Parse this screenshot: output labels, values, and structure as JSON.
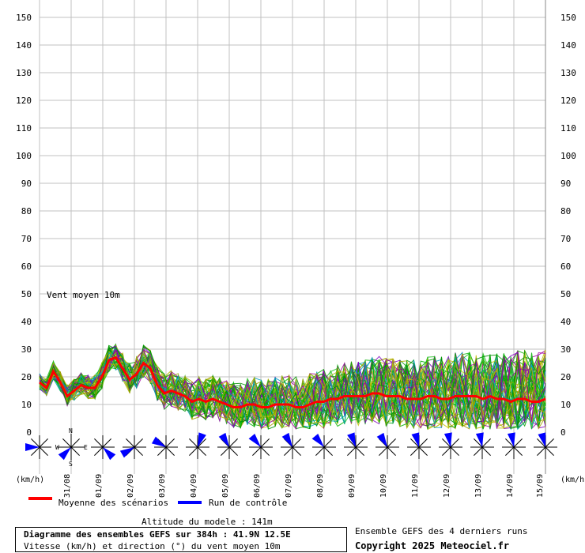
{
  "chart_data": {
    "type": "line",
    "title": "Diagramme des ensembles GEFS sur 384h : 41.9N 12.5E",
    "subtitle": "Vitesse (km/h) et direction (°) du vent moyen 10m",
    "series_label": "Vent moyen 10m",
    "ylim": [
      0,
      150
    ],
    "yticks": [
      0,
      10,
      20,
      30,
      40,
      50,
      60,
      70,
      80,
      90,
      100,
      110,
      120,
      130,
      140,
      150
    ],
    "unit_left": "(km/h)",
    "unit_right": "(km/h)",
    "x_labels": [
      "31/08",
      "01/09",
      "02/09",
      "03/09",
      "04/09",
      "05/09",
      "06/09",
      "07/09",
      "08/09",
      "09/09",
      "10/09",
      "11/09",
      "12/09",
      "13/09",
      "14/09",
      "15/09"
    ],
    "grid": true,
    "series": [
      {
        "name": "Moyenne des scénarios",
        "color": "#ff0000",
        "values": [
          18,
          16,
          22,
          18,
          13,
          15,
          17,
          16,
          16,
          20,
          26,
          27,
          23,
          19,
          21,
          25,
          23,
          17,
          14,
          15,
          14,
          13,
          11,
          12,
          11,
          12,
          11,
          10,
          9,
          9,
          10,
          10,
          9,
          9,
          10,
          10,
          10,
          9,
          9,
          10,
          11,
          11,
          12,
          12,
          13,
          13,
          13,
          13,
          14,
          14,
          13,
          13,
          13,
          12,
          12,
          12,
          13,
          13,
          12,
          12,
          13,
          13,
          13,
          13,
          12,
          13,
          12,
          12,
          11,
          12,
          12,
          11,
          11,
          12
        ]
      },
      {
        "name": "Run de contrôle",
        "color": "#0000ff",
        "values": []
      }
    ],
    "direction_arrows_deg": [
      270,
      225,
      135,
      240,
      300,
      20,
      330,
      320,
      330,
      320,
      340,
      330,
      345,
      350,
      350,
      350,
      345
    ]
  },
  "info": {
    "altitude": "Altitude du modele : 141m",
    "ensemble_note": "Ensemble GEFS des 4 derniers runs",
    "copyright": "Copyright 2025 Meteociel.fr"
  },
  "compass": {
    "n": "N",
    "s": "S",
    "e": "E",
    "w": "W"
  },
  "colors": {
    "mean": "#ff0000",
    "control": "#0000ff",
    "grid": "#c0c0c0",
    "arrow": "#0000ff"
  }
}
